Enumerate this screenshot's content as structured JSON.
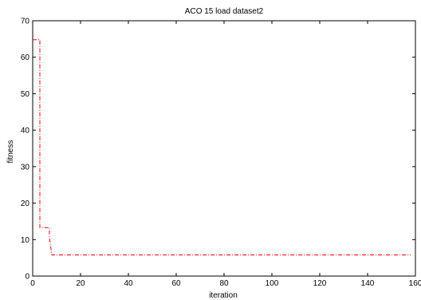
{
  "chart_data": {
    "type": "line",
    "title": "ACO 15 load dataset2",
    "xlabel": "iteration",
    "ylabel": "fitness",
    "xlim": [
      0,
      160
    ],
    "ylim": [
      0,
      70
    ],
    "xticks": [
      0,
      20,
      40,
      60,
      80,
      100,
      120,
      140,
      160
    ],
    "yticks": [
      0,
      10,
      20,
      30,
      40,
      50,
      60,
      70
    ],
    "xtick_labels": [
      "0",
      "20",
      "40",
      "60",
      "80",
      "100",
      "120",
      "140",
      "160"
    ],
    "ytick_labels": [
      "0",
      "10",
      "20",
      "30",
      "40",
      "50",
      "60",
      "70"
    ],
    "grid": false,
    "series": [
      {
        "style": "dash-dot",
        "color": "#e8000b",
        "x": [
          0,
          3,
          3,
          7,
          7,
          8,
          158
        ],
        "y": [
          64.8,
          64.8,
          13.3,
          13.3,
          10.5,
          5.8,
          5.8
        ]
      }
    ]
  }
}
